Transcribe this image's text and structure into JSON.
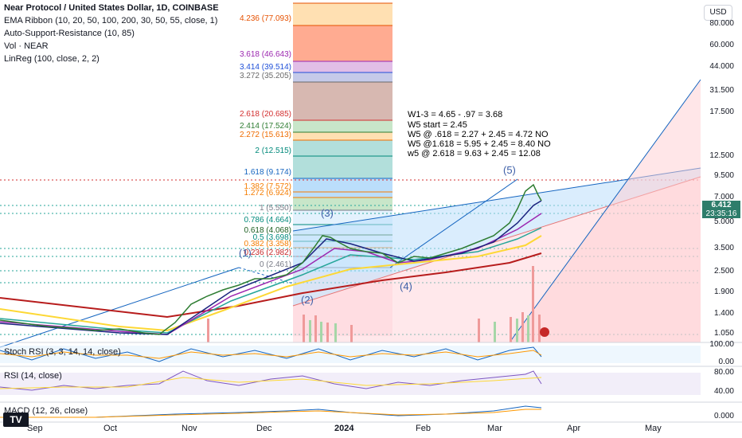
{
  "legend": {
    "title": "Near Protocol / United States Dollar, 1D, COINBASE",
    "ema": "EMA Ribbon (10, 20, 50, 100, 200, 30, 50, 55, close, 1)",
    "asr": "Auto-Support-Resistance (10, 85)",
    "vol": "Vol · NEAR",
    "linreg": "LinReg (100, close, 2, 2)"
  },
  "currency": "USD",
  "price_tag": {
    "price": "6.412",
    "countdown": "23:35:16"
  },
  "y_axis": [
    "80.000",
    "60.000",
    "44.000",
    "31.500",
    "17.500",
    "12.500",
    "9.500",
    "7.000",
    "5.000",
    "3.500",
    "2.500",
    "1.900",
    "1.400",
    "1.050"
  ],
  "stoch_axis": [
    "100.00",
    "0.00"
  ],
  "rsi_axis": [
    "80.00",
    "40.00"
  ],
  "macd_axis": [
    "0.000"
  ],
  "x_axis": [
    "Sep",
    "Oct",
    "Nov",
    "Dec",
    "2024",
    "Feb",
    "Mar",
    "Apr",
    "May"
  ],
  "fib_levels": [
    {
      "text": "4.236 (77.093)",
      "color": "#e65100"
    },
    {
      "text": "3.618 (46.643)",
      "color": "#9c27b0"
    },
    {
      "text": "3.414 (39.514)",
      "color": "#1e4fd8"
    },
    {
      "text": "3.272 (35.205)",
      "color": "#6a6a6a"
    },
    {
      "text": "2.618 (20.685)",
      "color": "#d32f2f"
    },
    {
      "text": "2.414 (17.524)",
      "color": "#2e7d32"
    },
    {
      "text": "2.272 (15.613)",
      "color": "#ef6c00"
    },
    {
      "text": "2 (12.515)",
      "color": "#00897b"
    },
    {
      "text": "1.618 (9.174)",
      "color": "#1565c0"
    },
    {
      "text": "1.382 (7.572)",
      "color": "#f57c00"
    },
    {
      "text": "1.272 (6.924)",
      "color": "#f57c00"
    },
    {
      "text": "1 (5.550)",
      "color": "#787b86"
    },
    {
      "text": "0.786 (4.664)",
      "color": "#00897b"
    },
    {
      "text": "0.618 (4.068)",
      "color": "#1b5e20"
    },
    {
      "text": "0.5 (3.698)",
      "color": "#00897b"
    },
    {
      "text": "0.382 (3.358)",
      "color": "#f57c00"
    },
    {
      "text": "0.236 (2.982)",
      "color": "#c62828"
    },
    {
      "text": "0 (2.461)",
      "color": "#787b86"
    }
  ],
  "annotations": [
    "W1-3 = 4.65 - .97 = 3.68",
    "W5 start = 2.45",
    "W5 @ .618 = 2.27 + 2.45 = 4.72 NO",
    "W5 @1.618 = 5.95 + 2.45 = 8.40 NO",
    "w5 @ 2.618 = 9.63 + 2.45 = 12.08"
  ],
  "waves": [
    "(1)",
    "(2)",
    "(3)",
    "(4)",
    "(5)"
  ],
  "panes": {
    "stoch": "Stoch RSI (3, 3, 14, 14, close)",
    "rsi": "RSI (14, close)",
    "macd": "MACD (12, 26, close)"
  },
  "logo": "TV"
}
